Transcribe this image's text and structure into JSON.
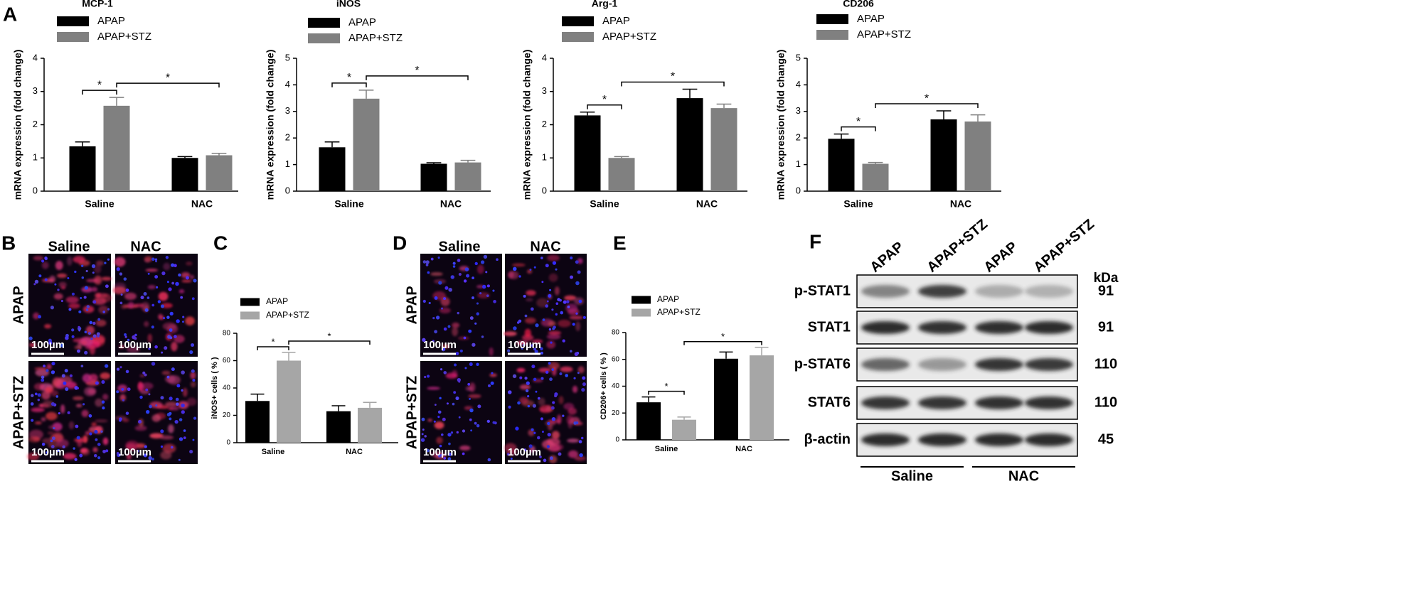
{
  "panels": [
    "A",
    "B",
    "C",
    "D",
    "E",
    "F"
  ],
  "chart_data": [
    {
      "type": "bar",
      "title": "MCP-1",
      "y_label": "mRNA expression (fold change)",
      "categories": [
        "Saline",
        "NAC"
      ],
      "series": [
        {
          "name": "APAP",
          "color": "#000000",
          "values": [
            1.35,
            1.0
          ],
          "errors": [
            0.13,
            0.04
          ]
        },
        {
          "name": "APAP+STZ",
          "color": "#808080",
          "values": [
            2.57,
            1.08
          ],
          "errors": [
            0.25,
            0.06
          ]
        }
      ],
      "ylim": [
        0,
        4
      ],
      "yticks": [
        0,
        1,
        2,
        3,
        4
      ],
      "significance": [
        {
          "label": "*",
          "from": [
            "APAP",
            "Saline"
          ],
          "to": [
            "APAP+STZ",
            "Saline"
          ]
        },
        {
          "label": "*",
          "from": [
            "APAP+STZ",
            "Saline"
          ],
          "to": [
            "APAP+STZ",
            "NAC"
          ]
        }
      ]
    },
    {
      "type": "bar",
      "title": "iNOS",
      "y_label": "mRNA expression (fold change)",
      "categories": [
        "Saline",
        "NAC"
      ],
      "series": [
        {
          "name": "APAP",
          "color": "#000000",
          "values": [
            1.65,
            1.03
          ],
          "errors": [
            0.2,
            0.04
          ]
        },
        {
          "name": "APAP+STZ",
          "color": "#808080",
          "values": [
            3.48,
            1.08
          ],
          "errors": [
            0.32,
            0.08
          ]
        }
      ],
      "ylim": [
        0,
        5
      ],
      "yticks": [
        0,
        1,
        2,
        3,
        4,
        5
      ],
      "significance": [
        {
          "label": "*",
          "from": [
            "APAP",
            "Saline"
          ],
          "to": [
            "APAP+STZ",
            "Saline"
          ]
        },
        {
          "label": "*",
          "from": [
            "APAP+STZ",
            "Saline"
          ],
          "to": [
            "APAP+STZ",
            "NAC"
          ]
        }
      ]
    },
    {
      "type": "bar",
      "title": "Arg-1",
      "y_label": "mRNA expression (fold change)",
      "categories": [
        "Saline",
        "NAC"
      ],
      "series": [
        {
          "name": "APAP",
          "color": "#000000",
          "values": [
            2.28,
            2.8
          ],
          "errors": [
            0.1,
            0.27
          ]
        },
        {
          "name": "APAP+STZ",
          "color": "#808080",
          "values": [
            1.0,
            2.5
          ],
          "errors": [
            0.04,
            0.12
          ]
        }
      ],
      "ylim": [
        0,
        4
      ],
      "yticks": [
        0,
        1,
        2,
        3,
        4
      ],
      "significance": [
        {
          "label": "*",
          "from": [
            "APAP",
            "Saline"
          ],
          "to": [
            "APAP+STZ",
            "Saline"
          ]
        },
        {
          "label": "*",
          "from": [
            "APAP+STZ",
            "Saline"
          ],
          "to": [
            "APAP+STZ",
            "NAC"
          ]
        }
      ]
    },
    {
      "type": "bar",
      "title": "CD206",
      "y_label": "mRNA expression (fold change)",
      "categories": [
        "Saline",
        "NAC"
      ],
      "series": [
        {
          "name": "APAP",
          "color": "#000000",
          "values": [
            1.97,
            2.7
          ],
          "errors": [
            0.18,
            0.32
          ]
        },
        {
          "name": "APAP+STZ",
          "color": "#808080",
          "values": [
            1.03,
            2.62
          ],
          "errors": [
            0.05,
            0.25
          ]
        }
      ],
      "ylim": [
        0,
        5
      ],
      "yticks": [
        0,
        1,
        2,
        3,
        4,
        5
      ],
      "significance": [
        {
          "label": "*",
          "from": [
            "APAP",
            "Saline"
          ],
          "to": [
            "APAP+STZ",
            "Saline"
          ]
        },
        {
          "label": "*",
          "from": [
            "APAP+STZ",
            "Saline"
          ],
          "to": [
            "APAP+STZ",
            "NAC"
          ]
        }
      ]
    },
    {
      "type": "bar",
      "y_label": "iNOS+ cells ( % )",
      "categories": [
        "Saline",
        "NAC"
      ],
      "series": [
        {
          "name": "APAP",
          "color": "#000000",
          "values": [
            30.5,
            23
          ],
          "errors": [
            5,
            4
          ]
        },
        {
          "name": "APAP+STZ",
          "color": "#a6a6a6",
          "values": [
            60,
            25.5
          ],
          "errors": [
            6,
            4
          ]
        }
      ],
      "ylim": [
        0,
        80
      ],
      "yticks": [
        0,
        20,
        40,
        60,
        80
      ],
      "significance": [
        {
          "label": "*",
          "from": [
            "APAP",
            "Saline"
          ],
          "to": [
            "APAP+STZ",
            "Saline"
          ]
        },
        {
          "label": "*",
          "from": [
            "APAP+STZ",
            "Saline"
          ],
          "to": [
            "APAP+STZ",
            "NAC"
          ]
        }
      ]
    },
    {
      "type": "bar",
      "y_label": "CD206+ cells ( % )",
      "categories": [
        "Saline",
        "NAC"
      ],
      "series": [
        {
          "name": "APAP",
          "color": "#000000",
          "values": [
            28,
            60.5
          ],
          "errors": [
            4,
            5
          ]
        },
        {
          "name": "APAP+STZ",
          "color": "#a6a6a6",
          "values": [
            15,
            63
          ],
          "errors": [
            2,
            6
          ]
        }
      ],
      "ylim": [
        0,
        80
      ],
      "yticks": [
        0,
        20,
        40,
        60,
        80
      ],
      "significance": [
        {
          "label": "*",
          "from": [
            "APAP",
            "Saline"
          ],
          "to": [
            "APAP+STZ",
            "Saline"
          ]
        },
        {
          "label": "*",
          "from": [
            "APAP+STZ",
            "Saline"
          ],
          "to": [
            "APAP+STZ",
            "NAC"
          ]
        }
      ]
    }
  ],
  "panel_b": {
    "columns": [
      "Saline",
      "NAC"
    ],
    "rows": [
      "APAP",
      "APAP+STZ"
    ],
    "scale_bar": "100µm"
  },
  "panel_d": {
    "columns": [
      "Saline",
      "NAC"
    ],
    "rows": [
      "APAP",
      "APAP+STZ"
    ],
    "scale_bar": "100µm"
  },
  "panel_f": {
    "lanes": [
      "APAP",
      "APAP+STZ",
      "APAP",
      "APAP+STZ"
    ],
    "unit": "kDa",
    "rows": [
      {
        "label": "p-STAT1",
        "kda": 91
      },
      {
        "label": "STAT1",
        "kda": 91
      },
      {
        "label": "p-STAT6",
        "kda": 110
      },
      {
        "label": "STAT6",
        "kda": 110
      },
      {
        "label": "β-actin",
        "kda": 45
      }
    ],
    "groups": [
      "Saline",
      "NAC"
    ]
  }
}
